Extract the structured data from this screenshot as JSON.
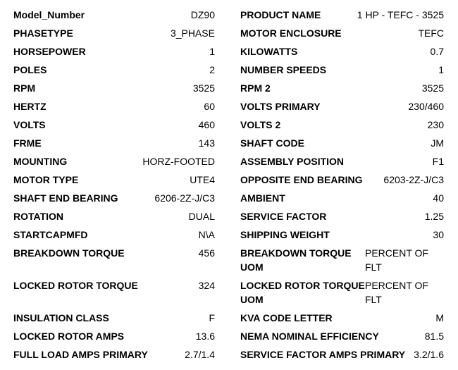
{
  "colors": {
    "text": "#000000",
    "background": "#ffffff"
  },
  "table": {
    "rows": [
      {
        "left": {
          "label": "Model_Number",
          "value": "DZ90"
        },
        "right": {
          "label": "PRODUCT NAME",
          "value": "1 HP - TEFC - 3525"
        }
      },
      {
        "left": {
          "label": "PHASETYPE",
          "value": "3_PHASE"
        },
        "right": {
          "label": "MOTOR ENCLOSURE",
          "value": "TEFC"
        }
      },
      {
        "left": {
          "label": "HORSEPOWER",
          "value": "1"
        },
        "right": {
          "label": "KILOWATTS",
          "value": "0.7"
        }
      },
      {
        "left": {
          "label": "POLES",
          "value": "2"
        },
        "right": {
          "label": "NUMBER SPEEDS",
          "value": "1"
        }
      },
      {
        "left": {
          "label": "RPM",
          "value": "3525"
        },
        "right": {
          "label": "RPM 2",
          "value": "3525"
        }
      },
      {
        "left": {
          "label": "HERTZ",
          "value": "60"
        },
        "right": {
          "label": "VOLTS PRIMARY",
          "value": "230/460"
        }
      },
      {
        "left": {
          "label": "VOLTS",
          "value": "460"
        },
        "right": {
          "label": "VOLTS 2",
          "value": "230"
        }
      },
      {
        "left": {
          "label": "FRME",
          "value": "143"
        },
        "right": {
          "label": "SHAFT CODE",
          "value": "JM"
        }
      },
      {
        "left": {
          "label": "MOUNTING",
          "value": "HORZ-FOOTED"
        },
        "right": {
          "label": "ASSEMBLY POSITION",
          "value": "F1"
        }
      },
      {
        "left": {
          "label": "MOTOR TYPE",
          "value": "UTE4"
        },
        "right": {
          "label": "OPPOSITE END BEARING",
          "value": "6203-2Z-J/C3"
        }
      },
      {
        "left": {
          "label": "SHAFT END BEARING",
          "value": "6206-2Z-J/C3"
        },
        "right": {
          "label": "AMBIENT",
          "value": "40"
        }
      },
      {
        "left": {
          "label": "ROTATION",
          "value": "DUAL"
        },
        "right": {
          "label": "SERVICE FACTOR",
          "value": "1.25"
        }
      },
      {
        "left": {
          "label": "STARTCAPMFD",
          "value": "N\\A"
        },
        "right": {
          "label": "SHIPPING WEIGHT",
          "value": "30"
        }
      },
      {
        "left": {
          "label": "BREAKDOWN TORQUE",
          "value": "456"
        },
        "right": {
          "label": [
            "BREAKDOWN TORQUE",
            "UOM"
          ],
          "value": [
            "PERCENT OF",
            "FLT"
          ],
          "wrap": true
        }
      },
      {
        "left": {
          "label": "LOCKED ROTOR TORQUE",
          "value": "324"
        },
        "right": {
          "label": [
            "LOCKED ROTOR TORQUE",
            "UOM"
          ],
          "value": [
            "PERCENT OF",
            "FLT"
          ],
          "wrap": true
        }
      },
      {
        "left": {
          "label": "INSULATION CLASS",
          "value": "F"
        },
        "right": {
          "label": "KVA CODE LETTER",
          "value": "M"
        }
      },
      {
        "left": {
          "label": "LOCKED ROTOR AMPS",
          "value": "13.6"
        },
        "right": {
          "label": "NEMA NOMINAL EFFICIENCY",
          "value": "81.5"
        }
      },
      {
        "left": {
          "label": "FULL LOAD AMPS PRIMARY",
          "value": "2.7/1.4"
        },
        "right": {
          "label": "SERVICE FACTOR AMPS PRIMARY",
          "value": "3.2/1.6"
        }
      }
    ]
  }
}
